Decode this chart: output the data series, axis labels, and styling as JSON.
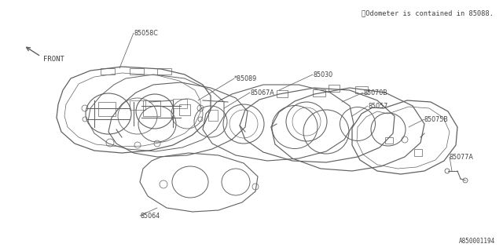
{
  "bg_color": "#ffffff",
  "line_color": "#606060",
  "text_color": "#404040",
  "title_note": "※Odometer is contained in 85088.",
  "front_label": "FRONT",
  "part_ids": [
    "85058C",
    "*85089",
    "85067A",
    "85030",
    "85070B",
    "85057",
    "85075B",
    "85077A",
    "85064"
  ],
  "watermark": "A850001194",
  "font_size_label": 5.8,
  "font_size_note": 6.2,
  "font_size_watermark": 5.5
}
